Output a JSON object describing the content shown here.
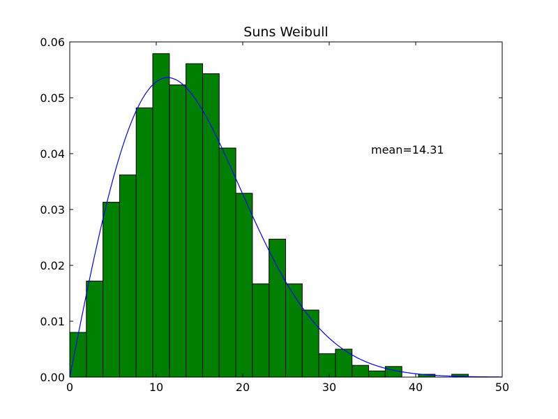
{
  "chart_data": {
    "type": "bar",
    "title": "Suns Weibull",
    "xlabel": "",
    "ylabel": "",
    "xlim": [
      0,
      50
    ],
    "ylim": [
      0,
      0.06
    ],
    "xticks": [
      0,
      10,
      20,
      30,
      40,
      50
    ],
    "xtick_labels": [
      "0",
      "10",
      "20",
      "30",
      "40",
      "50"
    ],
    "yticks": [
      0.0,
      0.01,
      0.02,
      0.03,
      0.04,
      0.05,
      0.06
    ],
    "ytick_labels": [
      "0.00",
      "0.01",
      "0.02",
      "0.03",
      "0.04",
      "0.05",
      "0.06"
    ],
    "grid": false,
    "bar_color": "#008000",
    "line_color": "#0000ff",
    "bins": [
      {
        "x0": 0.0,
        "x1": 1.92,
        "value": 0.008
      },
      {
        "x0": 1.92,
        "x1": 3.84,
        "value": 0.0172
      },
      {
        "x0": 3.84,
        "x1": 5.76,
        "value": 0.0313
      },
      {
        "x0": 5.76,
        "x1": 7.68,
        "value": 0.0362
      },
      {
        "x0": 7.68,
        "x1": 9.6,
        "value": 0.0482
      },
      {
        "x0": 9.6,
        "x1": 11.52,
        "value": 0.0579
      },
      {
        "x0": 11.52,
        "x1": 13.44,
        "value": 0.0523
      },
      {
        "x0": 13.44,
        "x1": 15.36,
        "value": 0.0561
      },
      {
        "x0": 15.36,
        "x1": 17.28,
        "value": 0.0543
      },
      {
        "x0": 17.28,
        "x1": 19.2,
        "value": 0.041
      },
      {
        "x0": 19.2,
        "x1": 21.12,
        "value": 0.0329
      },
      {
        "x0": 21.12,
        "x1": 23.04,
        "value": 0.0167
      },
      {
        "x0": 23.04,
        "x1": 24.96,
        "value": 0.0247
      },
      {
        "x0": 24.96,
        "x1": 26.88,
        "value": 0.0167
      },
      {
        "x0": 26.88,
        "x1": 28.8,
        "value": 0.012
      },
      {
        "x0": 28.8,
        "x1": 30.72,
        "value": 0.0042
      },
      {
        "x0": 30.72,
        "x1": 32.64,
        "value": 0.005
      },
      {
        "x0": 32.64,
        "x1": 34.56,
        "value": 0.0021
      },
      {
        "x0": 34.56,
        "x1": 36.48,
        "value": 0.0011
      },
      {
        "x0": 36.48,
        "x1": 38.4,
        "value": 0.0019
      },
      {
        "x0": 38.4,
        "x1": 40.32,
        "value": 0.0
      },
      {
        "x0": 40.32,
        "x1": 42.24,
        "value": 0.0005
      },
      {
        "x0": 42.24,
        "x1": 44.16,
        "value": 0.0
      },
      {
        "x0": 44.16,
        "x1": 46.08,
        "value": 0.0005
      },
      {
        "x0": 46.08,
        "x1": 48.0,
        "value": 0.0
      }
    ],
    "fit_curve": {
      "type": "weibull_pdf",
      "scale": 16.0,
      "shape": 2.0,
      "x_range": [
        0,
        50
      ]
    },
    "annotation": {
      "text": "mean=14.31",
      "x": 35,
      "y": 0.04
    }
  }
}
